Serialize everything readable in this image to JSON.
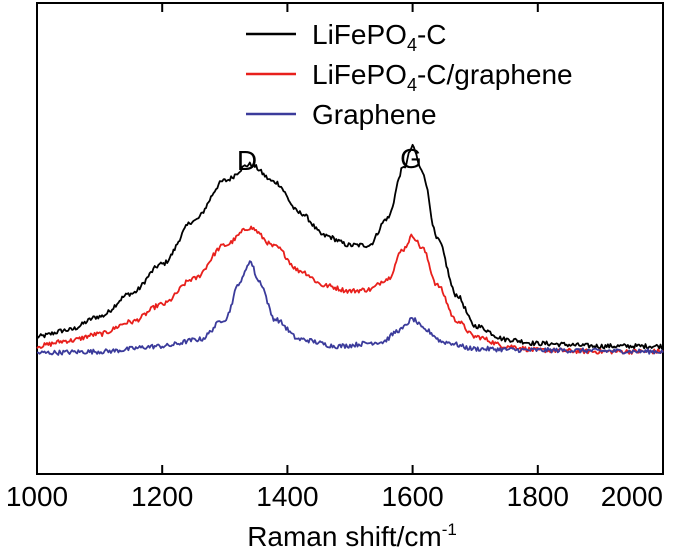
{
  "chart_data": {
    "type": "line",
    "title": "",
    "xlabel": "Raman shift/cm",
    "xlabel_sup": "-1",
    "ylabel": "",
    "xlim": [
      1000,
      2000
    ],
    "ylim": [
      -0.9,
      2.6
    ],
    "xticks": [
      "1000",
      "1200",
      "1400",
      "1600",
      "1800",
      "2000"
    ],
    "yticks_shown": false,
    "legend_position": "top-right",
    "legend": [
      {
        "prefix": "LiFePO",
        "sub": "4",
        "suffix": "-C"
      },
      {
        "prefix": "LiFePO",
        "sub": "4",
        "suffix": "-C/graphene"
      },
      {
        "prefix": "Graphene",
        "sub": "",
        "suffix": ""
      }
    ],
    "annotations": [
      {
        "text": "D",
        "x": 1340,
        "y": 1.7
      },
      {
        "text": "G",
        "x": 1600,
        "y": 1.72
      }
    ],
    "series": [
      {
        "name": "LiFePO4-C",
        "color": "#000000",
        "points": [
          [
            1000,
            0.12
          ],
          [
            1050,
            0.17
          ],
          [
            1100,
            0.27
          ],
          [
            1150,
            0.44
          ],
          [
            1200,
            0.66
          ],
          [
            1250,
            0.98
          ],
          [
            1300,
            1.28
          ],
          [
            1340,
            1.4
          ],
          [
            1380,
            1.27
          ],
          [
            1420,
            1.04
          ],
          [
            1460,
            0.87
          ],
          [
            1500,
            0.8
          ],
          [
            1530,
            0.8
          ],
          [
            1560,
            1.0
          ],
          [
            1585,
            1.37
          ],
          [
            1600,
            1.53
          ],
          [
            1615,
            1.35
          ],
          [
            1640,
            0.84
          ],
          [
            1670,
            0.43
          ],
          [
            1700,
            0.2
          ],
          [
            1750,
            0.1
          ],
          [
            1800,
            0.07
          ],
          [
            1900,
            0.05
          ],
          [
            2000,
            0.05
          ]
        ]
      },
      {
        "name": "LiFePO4-C/graphene",
        "color": "#e8201c",
        "points": [
          [
            1000,
            0.05
          ],
          [
            1050,
            0.09
          ],
          [
            1100,
            0.14
          ],
          [
            1150,
            0.23
          ],
          [
            1200,
            0.36
          ],
          [
            1250,
            0.55
          ],
          [
            1300,
            0.8
          ],
          [
            1340,
            0.93
          ],
          [
            1380,
            0.79
          ],
          [
            1420,
            0.61
          ],
          [
            1460,
            0.5
          ],
          [
            1500,
            0.46
          ],
          [
            1530,
            0.47
          ],
          [
            1560,
            0.55
          ],
          [
            1585,
            0.77
          ],
          [
            1600,
            0.87
          ],
          [
            1615,
            0.78
          ],
          [
            1640,
            0.5
          ],
          [
            1670,
            0.24
          ],
          [
            1700,
            0.12
          ],
          [
            1750,
            0.05
          ],
          [
            1800,
            0.02
          ],
          [
            1900,
            0.01
          ],
          [
            2000,
            0.01
          ]
        ]
      },
      {
        "name": "Graphene",
        "color": "#3b3b9b",
        "points": [
          [
            1000,
            0.0
          ],
          [
            1100,
            0.01
          ],
          [
            1200,
            0.05
          ],
          [
            1260,
            0.1
          ],
          [
            1300,
            0.25
          ],
          [
            1325,
            0.53
          ],
          [
            1340,
            0.68
          ],
          [
            1355,
            0.53
          ],
          [
            1380,
            0.25
          ],
          [
            1420,
            0.1
          ],
          [
            1480,
            0.05
          ],
          [
            1550,
            0.08
          ],
          [
            1580,
            0.17
          ],
          [
            1600,
            0.25
          ],
          [
            1620,
            0.17
          ],
          [
            1650,
            0.08
          ],
          [
            1700,
            0.03
          ],
          [
            1800,
            0.02
          ],
          [
            2000,
            0.01
          ]
        ]
      }
    ]
  }
}
